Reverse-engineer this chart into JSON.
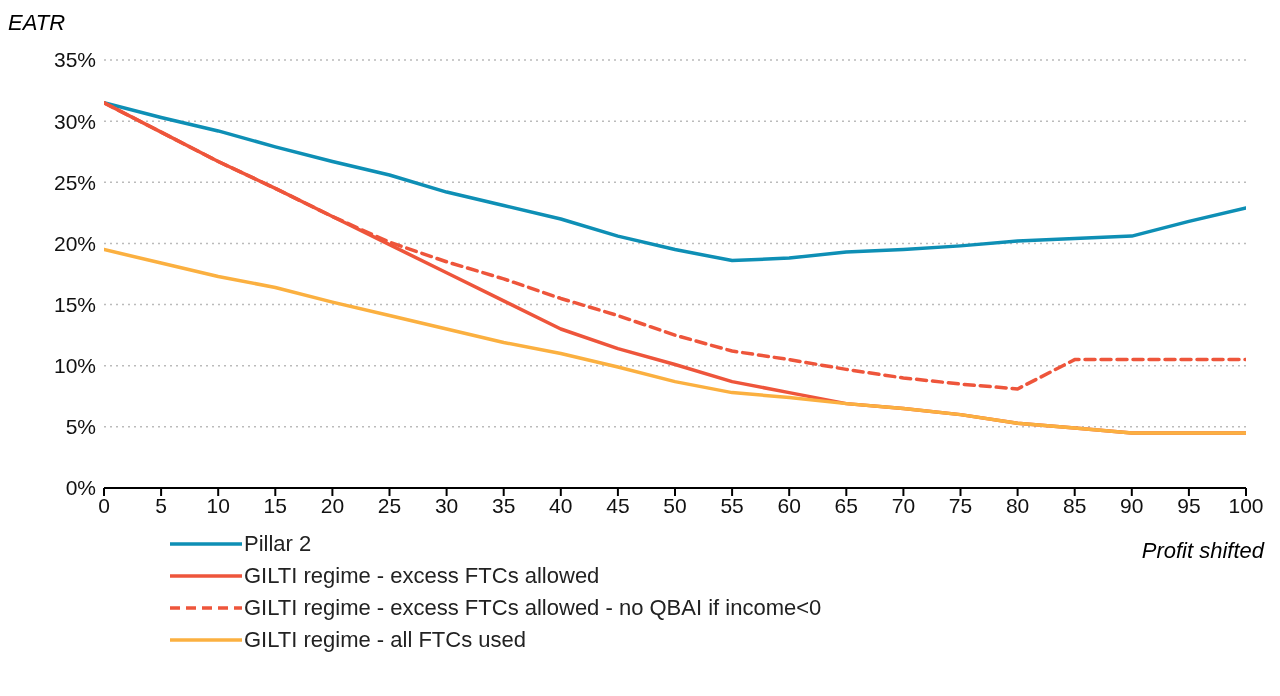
{
  "chart_data": {
    "type": "line",
    "ylabel": "EATR",
    "xlabel": "Profit shifted",
    "x": [
      0,
      5,
      10,
      15,
      20,
      25,
      30,
      35,
      40,
      45,
      50,
      55,
      60,
      65,
      70,
      75,
      80,
      85,
      90,
      95,
      100
    ],
    "xlim": [
      0,
      100
    ],
    "xticks": [
      0,
      5,
      10,
      15,
      20,
      25,
      30,
      35,
      40,
      45,
      50,
      55,
      60,
      65,
      70,
      75,
      80,
      85,
      90,
      95,
      100
    ],
    "ylim": [
      0,
      35
    ],
    "yticks": [
      {
        "value": 0,
        "label": "0%"
      },
      {
        "value": 5,
        "label": "5%"
      },
      {
        "value": 10,
        "label": "10%"
      },
      {
        "value": 15,
        "label": "15%"
      },
      {
        "value": 20,
        "label": "20%"
      },
      {
        "value": 25,
        "label": "25%"
      },
      {
        "value": 30,
        "label": "30%"
      },
      {
        "value": 35,
        "label": "35%"
      }
    ],
    "grid": "y",
    "legend": "bottom left",
    "marker": "none",
    "series": [
      {
        "name": "Pillar 2",
        "color": "#0e8fb5",
        "line_style": "solid",
        "values": [
          31.5,
          30.3,
          29.2,
          27.9,
          26.7,
          25.6,
          24.2,
          23.1,
          22.0,
          20.6,
          19.5,
          18.6,
          18.8,
          19.3,
          19.5,
          19.8,
          20.2,
          20.4,
          20.6,
          21.8,
          22.9
        ]
      },
      {
        "name": "GILTI regime - excess FTCs allowed",
        "color": "#ee553b",
        "line_style": "solid",
        "values": [
          31.5,
          29.1,
          26.7,
          24.5,
          22.2,
          19.9,
          17.6,
          15.3,
          13.0,
          11.4,
          10.1,
          8.7,
          7.8,
          6.9,
          6.5,
          6.0,
          5.3,
          4.9,
          4.5,
          4.5,
          4.5
        ]
      },
      {
        "name": "GILTI regime - excess FTCs allowed - no QBAI if income<0",
        "color": "#ee553b",
        "line_style": "dashed",
        "values": [
          31.5,
          29.1,
          26.7,
          24.5,
          22.2,
          20.1,
          18.5,
          17.1,
          15.5,
          14.1,
          12.5,
          11.2,
          10.5,
          9.7,
          9.0,
          8.5,
          8.1,
          10.5,
          10.5,
          10.5,
          10.5
        ]
      },
      {
        "name": "GILTI regime - all FTCs used",
        "color": "#fbb040",
        "line_style": "solid",
        "values": [
          19.5,
          18.4,
          17.3,
          16.4,
          15.2,
          14.1,
          13.0,
          11.9,
          11.0,
          9.9,
          8.7,
          7.8,
          7.4,
          6.9,
          6.5,
          6.0,
          5.3,
          4.9,
          4.5,
          4.5,
          4.5
        ]
      }
    ]
  }
}
